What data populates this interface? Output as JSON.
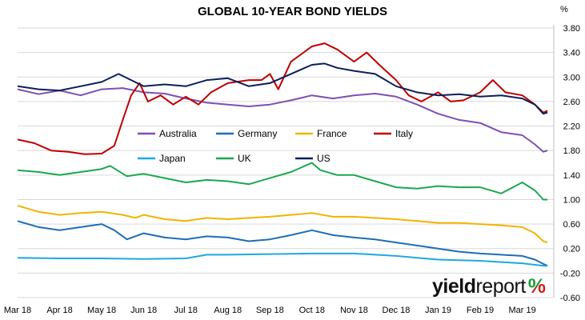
{
  "title": "GLOBAL 10-YEAR BOND YIELDS",
  "unit": "%",
  "brand": {
    "main": "yield",
    "rest": "report",
    "symbol": "%"
  },
  "chart_data": {
    "type": "line",
    "title": "GLOBAL 10-YEAR BOND YIELDS",
    "xlabel": "",
    "ylabel": "%",
    "ylim": [
      -0.6,
      3.8
    ],
    "yticks": [
      "3.80",
      "3.40",
      "3.00",
      "2.60",
      "2.20",
      "1.80",
      "1.40",
      "1.00",
      "0.60",
      "0.20",
      "-0.20",
      "-0.60"
    ],
    "x_tick_labels": [
      "Mar 18",
      "Apr 18",
      "May 18",
      "Jun 18",
      "Jul 18",
      "Aug 18",
      "Sep 18",
      "Oct 18",
      "Nov 18",
      "Dec 18",
      "Jan 19",
      "Feb 19",
      "Mar 19"
    ],
    "x_range": [
      0,
      12.75
    ],
    "grid": true,
    "legend": "inside, upper middle",
    "series": [
      {
        "name": "Australia",
        "color": "#7e4fb3",
        "points": [
          [
            0,
            2.8
          ],
          [
            0.5,
            2.72
          ],
          [
            1,
            2.78
          ],
          [
            1.5,
            2.7
          ],
          [
            2,
            2.8
          ],
          [
            2.5,
            2.82
          ],
          [
            3,
            2.75
          ],
          [
            3.5,
            2.73
          ],
          [
            4,
            2.65
          ],
          [
            4.5,
            2.58
          ],
          [
            5,
            2.55
          ],
          [
            5.5,
            2.52
          ],
          [
            6,
            2.55
          ],
          [
            6.5,
            2.62
          ],
          [
            7,
            2.7
          ],
          [
            7.5,
            2.65
          ],
          [
            8,
            2.7
          ],
          [
            8.5,
            2.73
          ],
          [
            9,
            2.68
          ],
          [
            9.5,
            2.55
          ],
          [
            10,
            2.4
          ],
          [
            10.5,
            2.3
          ],
          [
            11,
            2.25
          ],
          [
            11.5,
            2.1
          ],
          [
            12,
            2.05
          ],
          [
            12.3,
            1.9
          ],
          [
            12.5,
            1.78
          ],
          [
            12.6,
            1.8
          ]
        ]
      },
      {
        "name": "Germany",
        "color": "#1f6db5",
        "points": [
          [
            0,
            0.65
          ],
          [
            0.5,
            0.55
          ],
          [
            1,
            0.5
          ],
          [
            1.5,
            0.55
          ],
          [
            2,
            0.6
          ],
          [
            2.3,
            0.5
          ],
          [
            2.6,
            0.35
          ],
          [
            3,
            0.45
          ],
          [
            3.5,
            0.38
          ],
          [
            4,
            0.35
          ],
          [
            4.5,
            0.4
          ],
          [
            5,
            0.38
          ],
          [
            5.5,
            0.32
          ],
          [
            6,
            0.35
          ],
          [
            6.5,
            0.42
          ],
          [
            7,
            0.5
          ],
          [
            7.5,
            0.42
          ],
          [
            8,
            0.38
          ],
          [
            8.5,
            0.35
          ],
          [
            9,
            0.3
          ],
          [
            9.5,
            0.25
          ],
          [
            10,
            0.2
          ],
          [
            10.5,
            0.15
          ],
          [
            11,
            0.12
          ],
          [
            11.5,
            0.1
          ],
          [
            12,
            0.08
          ],
          [
            12.3,
            0.02
          ],
          [
            12.5,
            -0.05
          ],
          [
            12.6,
            -0.08
          ]
        ]
      },
      {
        "name": "France",
        "color": "#f0b400",
        "points": [
          [
            0,
            0.9
          ],
          [
            0.5,
            0.8
          ],
          [
            1,
            0.75
          ],
          [
            1.5,
            0.78
          ],
          [
            2,
            0.8
          ],
          [
            2.5,
            0.75
          ],
          [
            2.8,
            0.7
          ],
          [
            3,
            0.75
          ],
          [
            3.5,
            0.68
          ],
          [
            4,
            0.65
          ],
          [
            4.5,
            0.7
          ],
          [
            5,
            0.68
          ],
          [
            5.5,
            0.7
          ],
          [
            6,
            0.72
          ],
          [
            6.5,
            0.75
          ],
          [
            7,
            0.78
          ],
          [
            7.5,
            0.72
          ],
          [
            8,
            0.72
          ],
          [
            8.5,
            0.7
          ],
          [
            9,
            0.68
          ],
          [
            9.5,
            0.65
          ],
          [
            10,
            0.62
          ],
          [
            10.5,
            0.62
          ],
          [
            11,
            0.6
          ],
          [
            11.5,
            0.58
          ],
          [
            12,
            0.55
          ],
          [
            12.3,
            0.45
          ],
          [
            12.5,
            0.32
          ],
          [
            12.6,
            0.3
          ]
        ]
      },
      {
        "name": "Italy",
        "color": "#c00000",
        "points": [
          [
            0,
            1.98
          ],
          [
            0.4,
            1.92
          ],
          [
            0.8,
            1.8
          ],
          [
            1.2,
            1.78
          ],
          [
            1.6,
            1.74
          ],
          [
            2,
            1.75
          ],
          [
            2.3,
            1.88
          ],
          [
            2.5,
            2.3
          ],
          [
            2.7,
            2.7
          ],
          [
            2.9,
            2.9
          ],
          [
            3.1,
            2.6
          ],
          [
            3.4,
            2.7
          ],
          [
            3.7,
            2.55
          ],
          [
            4,
            2.68
          ],
          [
            4.3,
            2.55
          ],
          [
            4.6,
            2.75
          ],
          [
            5,
            2.9
          ],
          [
            5.5,
            2.95
          ],
          [
            5.8,
            2.95
          ],
          [
            6,
            3.05
          ],
          [
            6.2,
            2.8
          ],
          [
            6.5,
            3.25
          ],
          [
            7,
            3.5
          ],
          [
            7.3,
            3.55
          ],
          [
            7.6,
            3.45
          ],
          [
            8,
            3.25
          ],
          [
            8.3,
            3.4
          ],
          [
            8.6,
            3.2
          ],
          [
            9,
            2.95
          ],
          [
            9.3,
            2.7
          ],
          [
            9.6,
            2.6
          ],
          [
            10,
            2.75
          ],
          [
            10.3,
            2.6
          ],
          [
            10.6,
            2.62
          ],
          [
            11,
            2.75
          ],
          [
            11.3,
            2.95
          ],
          [
            11.6,
            2.75
          ],
          [
            12,
            2.7
          ],
          [
            12.3,
            2.55
          ],
          [
            12.5,
            2.42
          ],
          [
            12.6,
            2.45
          ]
        ]
      },
      {
        "name": "Japan",
        "color": "#1ea8e0",
        "points": [
          [
            0,
            0.05
          ],
          [
            1,
            0.04
          ],
          [
            2,
            0.04
          ],
          [
            3,
            0.03
          ],
          [
            4,
            0.04
          ],
          [
            4.5,
            0.1
          ],
          [
            5,
            0.1
          ],
          [
            6,
            0.11
          ],
          [
            7,
            0.12
          ],
          [
            8,
            0.12
          ],
          [
            9,
            0.08
          ],
          [
            9.5,
            0.05
          ],
          [
            10,
            0.02
          ],
          [
            11,
            0.0
          ],
          [
            11.5,
            -0.02
          ],
          [
            12,
            -0.04
          ],
          [
            12.5,
            -0.08
          ],
          [
            12.6,
            -0.08
          ]
        ]
      },
      {
        "name": "UK",
        "color": "#1aa84e",
        "points": [
          [
            0,
            1.48
          ],
          [
            0.5,
            1.45
          ],
          [
            1,
            1.4
          ],
          [
            1.5,
            1.45
          ],
          [
            2,
            1.5
          ],
          [
            2.2,
            1.55
          ],
          [
            2.6,
            1.38
          ],
          [
            3,
            1.42
          ],
          [
            3.5,
            1.35
          ],
          [
            4,
            1.28
          ],
          [
            4.5,
            1.32
          ],
          [
            5,
            1.3
          ],
          [
            5.5,
            1.25
          ],
          [
            6,
            1.35
          ],
          [
            6.5,
            1.45
          ],
          [
            7,
            1.6
          ],
          [
            7.2,
            1.48
          ],
          [
            7.6,
            1.4
          ],
          [
            8,
            1.4
          ],
          [
            8.5,
            1.3
          ],
          [
            9,
            1.2
          ],
          [
            9.5,
            1.18
          ],
          [
            10,
            1.22
          ],
          [
            10.5,
            1.2
          ],
          [
            11,
            1.2
          ],
          [
            11.5,
            1.1
          ],
          [
            12,
            1.28
          ],
          [
            12.3,
            1.15
          ],
          [
            12.5,
            1.0
          ],
          [
            12.6,
            1.0
          ]
        ]
      },
      {
        "name": "US",
        "color": "#0c1f5a",
        "points": [
          [
            0,
            2.85
          ],
          [
            0.5,
            2.8
          ],
          [
            1,
            2.78
          ],
          [
            1.5,
            2.85
          ],
          [
            2,
            2.92
          ],
          [
            2.4,
            3.05
          ],
          [
            2.7,
            2.95
          ],
          [
            3,
            2.85
          ],
          [
            3.5,
            2.88
          ],
          [
            4,
            2.85
          ],
          [
            4.5,
            2.95
          ],
          [
            5,
            2.98
          ],
          [
            5.5,
            2.85
          ],
          [
            6,
            2.9
          ],
          [
            6.5,
            3.05
          ],
          [
            7,
            3.2
          ],
          [
            7.3,
            3.22
          ],
          [
            7.6,
            3.15
          ],
          [
            8,
            3.1
          ],
          [
            8.5,
            3.05
          ],
          [
            9,
            2.85
          ],
          [
            9.5,
            2.75
          ],
          [
            10,
            2.7
          ],
          [
            10.5,
            2.72
          ],
          [
            11,
            2.68
          ],
          [
            11.5,
            2.7
          ],
          [
            12,
            2.65
          ],
          [
            12.3,
            2.55
          ],
          [
            12.5,
            2.4
          ],
          [
            12.6,
            2.42
          ]
        ]
      }
    ]
  }
}
